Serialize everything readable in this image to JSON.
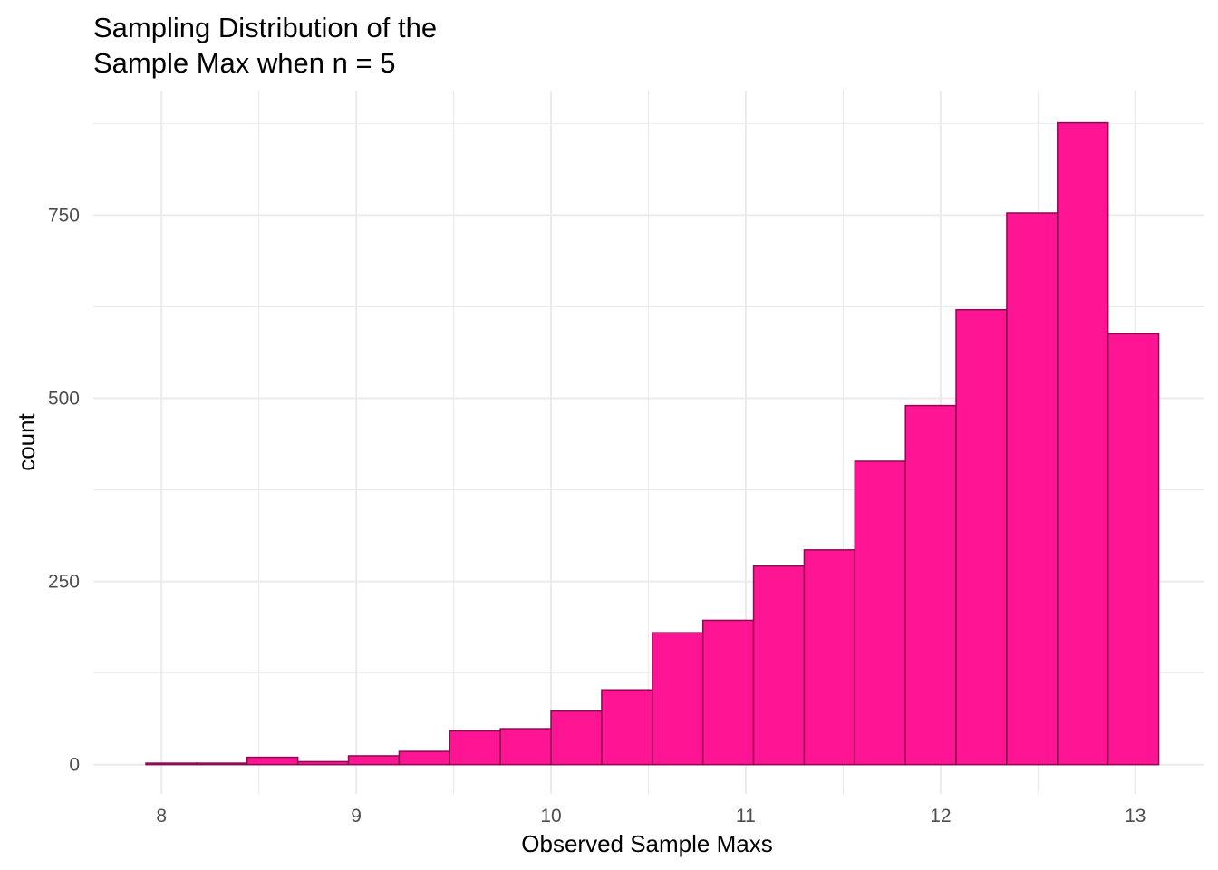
{
  "chart_data": {
    "type": "bar",
    "title": [
      "Sampling Distribution of the",
      "Sample Max when n = 5"
    ],
    "xlabel": "Observed Sample Maxs",
    "ylabel": "count",
    "xlim": [
      7.65,
      13.35
    ],
    "ylim": [
      -40,
      920
    ],
    "x_ticks": [
      8,
      9,
      10,
      11,
      12,
      13
    ],
    "y_ticks": [
      0,
      250,
      500,
      750
    ],
    "grid": true,
    "fill_color": "#ff1493",
    "outline_color": "#8b0a50",
    "grid_color": "#ebebeb",
    "bins": [
      {
        "x0": 7.92,
        "x1": 8.18,
        "count": 2
      },
      {
        "x0": 8.18,
        "x1": 8.44,
        "count": 2
      },
      {
        "x0": 8.44,
        "x1": 8.7,
        "count": 10
      },
      {
        "x0": 8.7,
        "x1": 8.96,
        "count": 4
      },
      {
        "x0": 8.96,
        "x1": 9.22,
        "count": 12
      },
      {
        "x0": 9.22,
        "x1": 9.48,
        "count": 18
      },
      {
        "x0": 9.48,
        "x1": 9.74,
        "count": 46
      },
      {
        "x0": 9.74,
        "x1": 10.0,
        "count": 49
      },
      {
        "x0": 10.0,
        "x1": 10.26,
        "count": 73
      },
      {
        "x0": 10.26,
        "x1": 10.52,
        "count": 102
      },
      {
        "x0": 10.52,
        "x1": 10.78,
        "count": 180
      },
      {
        "x0": 10.78,
        "x1": 11.04,
        "count": 197
      },
      {
        "x0": 11.04,
        "x1": 11.3,
        "count": 271
      },
      {
        "x0": 11.3,
        "x1": 11.56,
        "count": 293
      },
      {
        "x0": 11.56,
        "x1": 11.82,
        "count": 414
      },
      {
        "x0": 11.82,
        "x1": 12.08,
        "count": 490
      },
      {
        "x0": 12.08,
        "x1": 12.34,
        "count": 621
      },
      {
        "x0": 12.34,
        "x1": 12.6,
        "count": 753
      },
      {
        "x0": 12.6,
        "x1": 12.86,
        "count": 876
      },
      {
        "x0": 12.86,
        "x1": 13.12,
        "count": 588
      }
    ]
  }
}
